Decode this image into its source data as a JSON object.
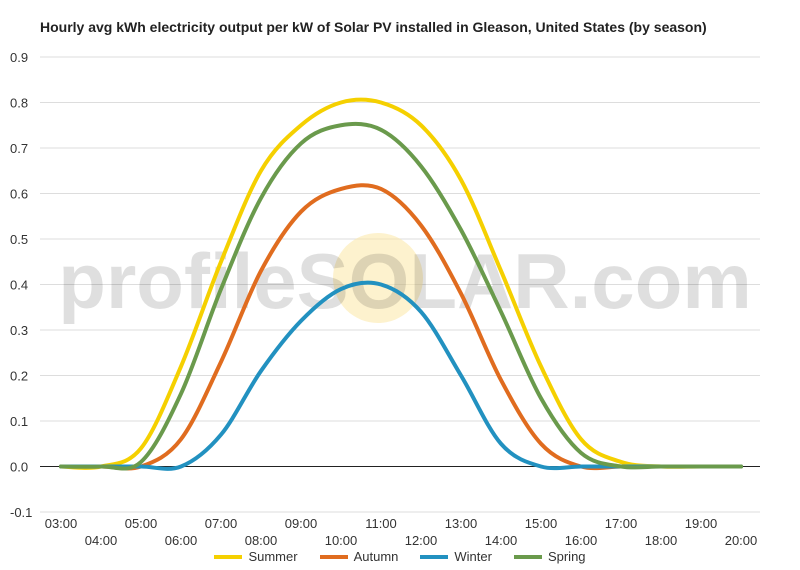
{
  "chart_data": {
    "type": "line",
    "title": "Hourly avg kWh electricity output per kW of Solar PV installed in Gleason, United States (by season)",
    "xlabel": "",
    "ylabel": "",
    "ylim": [
      -0.1,
      0.9
    ],
    "yticks": [
      "0.9",
      "0.8",
      "0.7",
      "0.6",
      "0.5",
      "0.4",
      "0.3",
      "0.2",
      "0.1",
      "0.0",
      "-0.1"
    ],
    "ytick_values": [
      0.9,
      0.8,
      0.7,
      0.6,
      0.5,
      0.4,
      0.3,
      0.2,
      0.1,
      0.0,
      -0.1
    ],
    "x": [
      "03:00",
      "04:00",
      "05:00",
      "06:00",
      "07:00",
      "08:00",
      "09:00",
      "10:00",
      "11:00",
      "12:00",
      "13:00",
      "14:00",
      "15:00",
      "16:00",
      "17:00",
      "18:00",
      "19:00",
      "20:00"
    ],
    "grid": true,
    "legend_position": "bottom",
    "watermark": "profileSOLAR.com",
    "series": [
      {
        "name": "Summer",
        "color": "#F5D000",
        "values": [
          0.0,
          0.0,
          0.04,
          0.22,
          0.45,
          0.65,
          0.75,
          0.8,
          0.8,
          0.75,
          0.63,
          0.43,
          0.22,
          0.06,
          0.01,
          0.0,
          0.0,
          0.0
        ]
      },
      {
        "name": "Autumn",
        "color": "#E06C1F",
        "values": [
          0.0,
          0.0,
          0.0,
          0.06,
          0.23,
          0.43,
          0.56,
          0.61,
          0.61,
          0.53,
          0.38,
          0.19,
          0.05,
          0.0,
          0.0,
          0.0,
          0.0,
          0.0
        ]
      },
      {
        "name": "Winter",
        "color": "#2291C0",
        "values": [
          0.0,
          0.0,
          0.0,
          0.0,
          0.07,
          0.21,
          0.32,
          0.39,
          0.4,
          0.34,
          0.2,
          0.05,
          0.0,
          0.0,
          0.0,
          0.0,
          0.0,
          0.0
        ]
      },
      {
        "name": "Spring",
        "color": "#6A9A4C",
        "values": [
          0.0,
          0.0,
          0.01,
          0.16,
          0.39,
          0.59,
          0.71,
          0.75,
          0.74,
          0.66,
          0.52,
          0.34,
          0.15,
          0.03,
          0.0,
          0.0,
          0.0,
          0.0
        ]
      }
    ]
  }
}
